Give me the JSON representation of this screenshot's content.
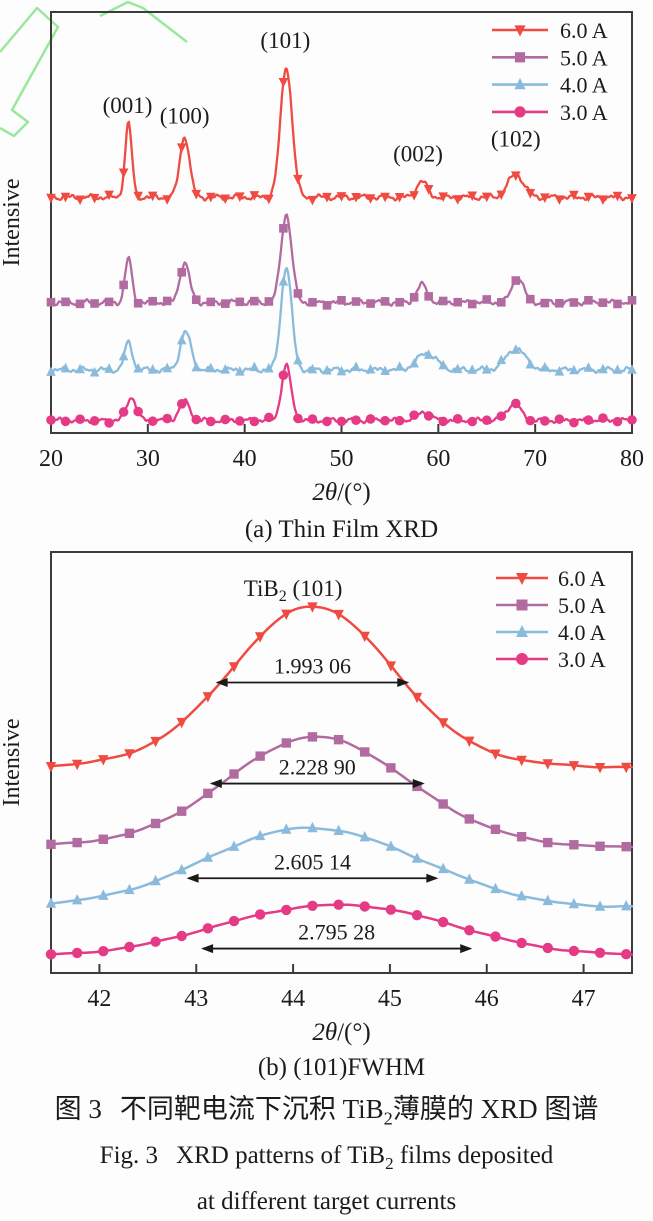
{
  "figure": {
    "caption_cn": {
      "prefix": "图 3",
      "text_a": "不同靶电流下沉积 TiB",
      "sub": "2",
      "text_b": "薄膜的 XRD 图谱"
    },
    "caption_en": {
      "prefix": "Fig. 3",
      "text_a": "XRD patterns of TiB",
      "sub": "2",
      "text_b": " films deposited",
      "line2": "at different target currents"
    }
  },
  "chart_data": [
    {
      "id": "a",
      "type": "line",
      "caption": "(a) Thin Film XRD",
      "xlabel": {
        "italic": "2θ",
        "rest": "/(°)"
      },
      "ylabel": "Intensive",
      "xlim": [
        20,
        80
      ],
      "ylim": [
        0,
        10
      ],
      "xticks": [
        20,
        30,
        40,
        50,
        60,
        70,
        80
      ],
      "grid": false,
      "legend_position": "top-right",
      "marker_step": 1.5,
      "series": [
        {
          "name": "6.0 A",
          "color": "#ef4b42",
          "marker": "triangle-down",
          "baseline": 5.6,
          "noise": 0.08,
          "seed": 1,
          "peaks": [
            {
              "center": 28.0,
              "height": 1.75,
              "sigma": 0.35
            },
            {
              "center": 33.8,
              "height": 1.45,
              "sigma": 0.5
            },
            {
              "center": 44.3,
              "height": 3.1,
              "sigma": 0.6
            },
            {
              "center": 58.3,
              "height": 0.38,
              "sigma": 0.55
            },
            {
              "center": 68.0,
              "height": 0.55,
              "sigma": 0.8
            }
          ]
        },
        {
          "name": "5.0 A",
          "color": "#b26ba0",
          "marker": "square",
          "baseline": 3.1,
          "noise": 0.08,
          "seed": 2,
          "peaks": [
            {
              "center": 28.0,
              "height": 1.05,
              "sigma": 0.35
            },
            {
              "center": 33.8,
              "height": 0.95,
              "sigma": 0.5
            },
            {
              "center": 44.3,
              "height": 2.1,
              "sigma": 0.55
            },
            {
              "center": 58.3,
              "height": 0.42,
              "sigma": 0.55
            },
            {
              "center": 68.2,
              "height": 0.6,
              "sigma": 0.6
            }
          ]
        },
        {
          "name": "4.0 A",
          "color": "#8abbdc",
          "marker": "triangle-up",
          "baseline": 1.5,
          "noise": 0.08,
          "seed": 3,
          "peaks": [
            {
              "center": 28.0,
              "height": 0.65,
              "sigma": 0.4
            },
            {
              "center": 33.9,
              "height": 0.9,
              "sigma": 0.55
            },
            {
              "center": 44.3,
              "height": 2.45,
              "sigma": 0.55
            },
            {
              "center": 58.8,
              "height": 0.4,
              "sigma": 1.0
            },
            {
              "center": 68.0,
              "height": 0.5,
              "sigma": 1.0
            }
          ]
        },
        {
          "name": "3.0 A",
          "color": "#e53a86",
          "marker": "circle",
          "baseline": 0.3,
          "noise": 0.07,
          "seed": 4,
          "peaks": [
            {
              "center": 28.3,
              "height": 0.55,
              "sigma": 0.5
            },
            {
              "center": 33.8,
              "height": 0.45,
              "sigma": 0.55
            },
            {
              "center": 44.3,
              "height": 1.3,
              "sigma": 0.5
            },
            {
              "center": 58.5,
              "height": 0.2,
              "sigma": 0.7
            },
            {
              "center": 67.8,
              "height": 0.4,
              "sigma": 0.7
            }
          ]
        }
      ],
      "peak_labels": [
        {
          "text": "(001)",
          "x": 27.9,
          "y": 7.6
        },
        {
          "text": "(100)",
          "x": 33.8,
          "y": 7.35
        },
        {
          "text": "(101)",
          "x": 44.2,
          "y": 9.15
        },
        {
          "text": "(002)",
          "x": 57.9,
          "y": 6.45
        },
        {
          "text": "(102)",
          "x": 68.0,
          "y": 6.8
        }
      ]
    },
    {
      "id": "b",
      "type": "line",
      "caption": "(b) (101)FWHM",
      "xlabel": {
        "italic": "2θ",
        "rest": "/(°)"
      },
      "ylabel": "Intensive",
      "title": {
        "pre": "TiB",
        "sub": "2",
        "post": "  (101)",
        "x": 44.0,
        "y": 8.95
      },
      "xlim": [
        41.5,
        47.5
      ],
      "ylim": [
        0,
        10
      ],
      "xticks": [
        42,
        43,
        44,
        45,
        46,
        47
      ],
      "grid": false,
      "legend_position": "top-right",
      "marker_step": 0.27,
      "series": [
        {
          "name": "6.0 A",
          "color": "#ef4b42",
          "marker": "triangle-down",
          "baseline": 4.9,
          "noise": 0.03,
          "seed": 5,
          "peaks": [
            {
              "center": 44.2,
              "height": 3.8,
              "sigma": 0.846
            }
          ]
        },
        {
          "name": "5.0 A",
          "color": "#b26ba0",
          "marker": "square",
          "baseline": 3.0,
          "noise": 0.03,
          "seed": 6,
          "peaks": [
            {
              "center": 44.25,
              "height": 2.6,
              "sigma": 0.947
            }
          ]
        },
        {
          "name": "4.0 A",
          "color": "#8abbdc",
          "marker": "triangle-up",
          "baseline": 1.55,
          "noise": 0.03,
          "seed": 7,
          "peaks": [
            {
              "center": 44.2,
              "height": 1.9,
              "sigma": 1.106
            }
          ]
        },
        {
          "name": "3.0 A",
          "color": "#e53a86",
          "marker": "circle",
          "baseline": 0.38,
          "noise": 0.025,
          "seed": 8,
          "peaks": [
            {
              "center": 44.45,
              "height": 1.25,
              "sigma": 1.187
            }
          ]
        }
      ],
      "annotations": [
        {
          "label": "1.993 06",
          "fwhm": 1.99306,
          "x1": 43.2,
          "x2": 45.2,
          "y": 6.9
        },
        {
          "label": "2.228 90",
          "fwhm": 2.2289,
          "x1": 43.14,
          "x2": 45.36,
          "y": 4.5
        },
        {
          "label": "2.605 14",
          "fwhm": 2.60514,
          "x1": 42.9,
          "x2": 45.5,
          "y": 2.25
        },
        {
          "label": "2.795 28",
          "fwhm": 2.79528,
          "x1": 43.05,
          "x2": 45.85,
          "y": 0.58
        }
      ]
    }
  ],
  "watermark_color": "#8fe58f"
}
